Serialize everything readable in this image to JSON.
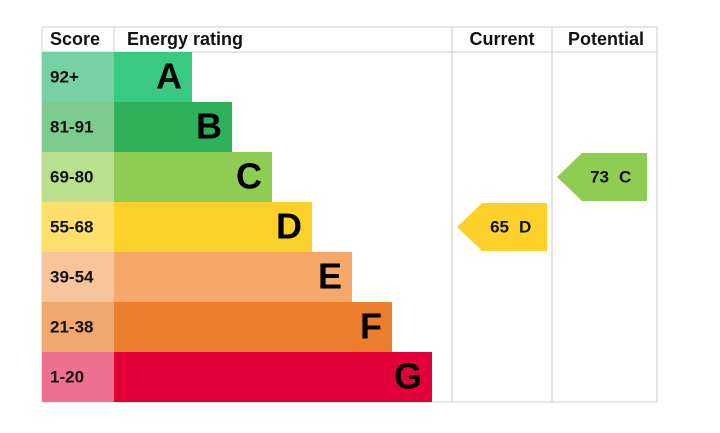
{
  "header": {
    "score": "Score",
    "rating": "Energy rating",
    "current": "Current",
    "potential": "Potential"
  },
  "bands": [
    {
      "score": "92+",
      "letter": "A",
      "color": "#3ac982",
      "score_color": "#78d0a5"
    },
    {
      "score": "81-91",
      "letter": "B",
      "color": "#2fb15a",
      "score_color": "#7ecb8f"
    },
    {
      "score": "69-80",
      "letter": "C",
      "color": "#8fcc54",
      "score_color": "#b9e08f"
    },
    {
      "score": "55-68",
      "letter": "D",
      "color": "#fcd22a",
      "score_color": "#fde06c"
    },
    {
      "score": "39-54",
      "letter": "E",
      "color": "#f6a86a",
      "score_color": "#f8c49b"
    },
    {
      "score": "21-38",
      "letter": "F",
      "color": "#ea7e2d",
      "score_color": "#f0a86e"
    },
    {
      "score": "1-20",
      "letter": "G",
      "color": "#e3003a",
      "score_color": "#ee7090"
    }
  ],
  "current": {
    "value": 65,
    "letter": "D"
  },
  "potential": {
    "value": 73,
    "letter": "C"
  }
}
